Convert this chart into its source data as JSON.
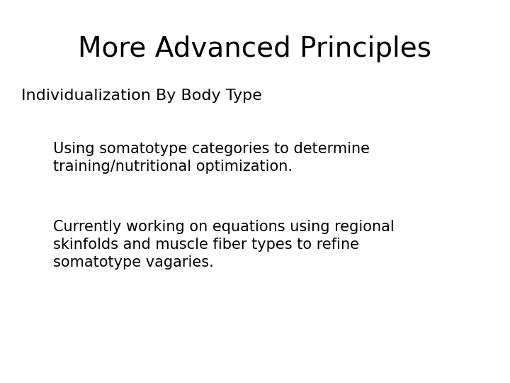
{
  "title": "More Advanced Principles",
  "title_fontsize": 28,
  "title_font": "DejaVu Sans",
  "background_color": "#ffffff",
  "text_color": "#000000",
  "heading": "Individualization By Body Type",
  "heading_fontsize": 16,
  "bullet1": "Using somatotype categories to determine\ntraining/nutritional optimization.",
  "bullet1_fontsize": 15,
  "bullet2": "Currently working on equations using regional\nskinfolds and muscle fiber types to refine\nsomatotype vagaries.",
  "bullet2_fontsize": 15
}
